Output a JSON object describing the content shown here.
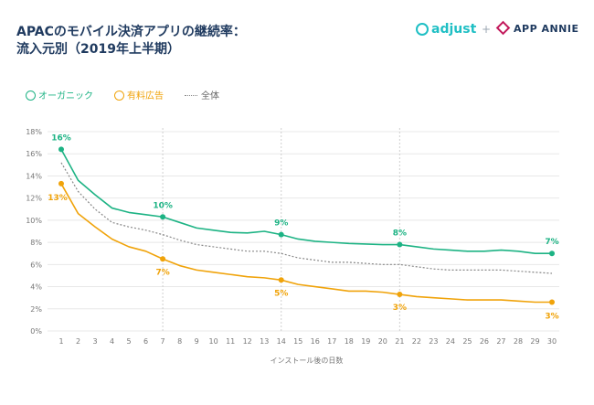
{
  "title_line1": "APACのモバイル決済アプリの継続率：",
  "title_line2": "流入元別（2019年上半期）",
  "logos": {
    "adjust": "adjust",
    "plus": "+",
    "app_annie": "APP ANNIE"
  },
  "colors": {
    "organic": "#1db384",
    "paid": "#f0a30a",
    "all": "#888888",
    "grid": "#e8e8e8",
    "text": "#777777",
    "title": "#1f3a5f"
  },
  "legend": {
    "organic": "オーガニック",
    "paid": "有料広告",
    "all": "全体"
  },
  "chart_data": {
    "type": "line",
    "xlabel": "インストール後の日数",
    "ylabel": "",
    "x": [
      1,
      2,
      3,
      4,
      5,
      6,
      7,
      8,
      9,
      10,
      11,
      12,
      13,
      14,
      15,
      16,
      17,
      18,
      19,
      20,
      21,
      22,
      23,
      24,
      25,
      26,
      27,
      28,
      29,
      30
    ],
    "ylim": [
      0,
      18
    ],
    "yticks": [
      0,
      2,
      4,
      6,
      8,
      10,
      12,
      14,
      16,
      18
    ],
    "ytick_labels": [
      "0%",
      "2%",
      "4%",
      "6%",
      "8%",
      "10%",
      "12%",
      "14%",
      "16%",
      "18%"
    ],
    "grid": "horizontal",
    "highlight_x": [
      7,
      14,
      21
    ],
    "series": [
      {
        "key": "organic",
        "name": "オーガニック",
        "values": [
          16.4,
          13.6,
          12.3,
          11.1,
          10.7,
          10.5,
          10.3,
          9.8,
          9.3,
          9.1,
          8.9,
          8.85,
          9.0,
          8.7,
          8.3,
          8.1,
          8.0,
          7.9,
          7.85,
          7.8,
          7.8,
          7.6,
          7.4,
          7.3,
          7.2,
          7.2,
          7.3,
          7.2,
          7.0,
          7.0
        ],
        "labels": [
          {
            "x": 1,
            "text": "16%"
          },
          {
            "x": 7,
            "text": "10%"
          },
          {
            "x": 14,
            "text": "9%"
          },
          {
            "x": 21,
            "text": "8%"
          },
          {
            "x": 30,
            "text": "7%"
          }
        ]
      },
      {
        "key": "all",
        "name": "全体",
        "values": [
          15.2,
          12.6,
          11.0,
          9.8,
          9.4,
          9.1,
          8.7,
          8.2,
          7.8,
          7.6,
          7.4,
          7.2,
          7.2,
          7.0,
          6.6,
          6.4,
          6.2,
          6.2,
          6.1,
          6.0,
          6.0,
          5.8,
          5.6,
          5.5,
          5.5,
          5.5,
          5.5,
          5.4,
          5.3,
          5.2
        ],
        "labels": []
      },
      {
        "key": "paid",
        "name": "有料広告",
        "values": [
          13.3,
          10.6,
          9.4,
          8.3,
          7.6,
          7.2,
          6.5,
          5.9,
          5.5,
          5.3,
          5.1,
          4.9,
          4.8,
          4.6,
          4.2,
          4.0,
          3.8,
          3.6,
          3.6,
          3.5,
          3.3,
          3.1,
          3.0,
          2.9,
          2.8,
          2.8,
          2.8,
          2.7,
          2.6,
          2.6
        ],
        "labels": [
          {
            "x": 1,
            "text": "13%"
          },
          {
            "x": 7,
            "text": "7%"
          },
          {
            "x": 14,
            "text": "5%"
          },
          {
            "x": 21,
            "text": "3%"
          },
          {
            "x": 30,
            "text": "3%"
          }
        ]
      }
    ]
  }
}
